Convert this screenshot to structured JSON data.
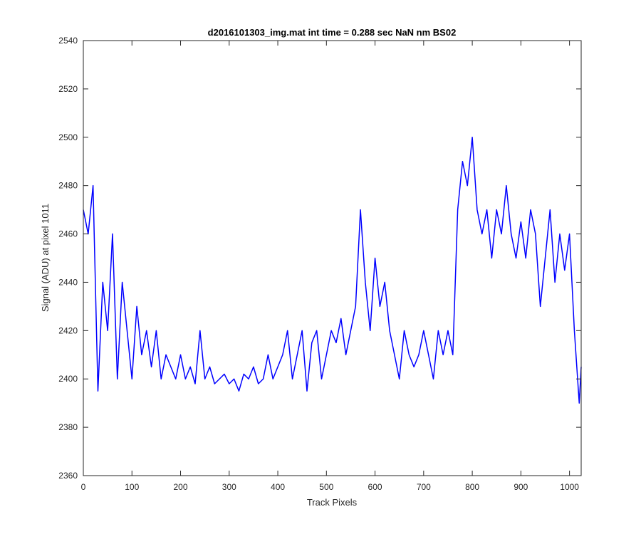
{
  "chart_data": {
    "type": "line",
    "title": "d2016101303_img.mat int time = 0.288 sec  NaN nm BS02",
    "xlabel": "Track Pixels",
    "ylabel": "Signal (ADU) at pixel 1011",
    "xlim": [
      0,
      1024
    ],
    "ylim": [
      2360,
      2540
    ],
    "xticks": [
      0,
      100,
      200,
      300,
      400,
      500,
      600,
      700,
      800,
      900,
      1000
    ],
    "yticks": [
      2360,
      2380,
      2400,
      2420,
      2440,
      2460,
      2480,
      2500,
      2520,
      2540
    ],
    "grid": false,
    "line_color": "#0000ff",
    "series": [
      {
        "x": [
          0,
          10,
          20,
          30,
          40,
          50,
          60,
          70,
          80,
          90,
          100,
          110,
          120,
          130,
          140,
          150,
          160,
          170,
          180,
          190,
          200,
          210,
          220,
          230,
          240,
          250,
          260,
          270,
          280,
          290,
          300,
          310,
          320,
          330,
          340,
          350,
          360,
          370,
          380,
          390,
          400,
          410,
          420,
          430,
          440,
          450,
          460,
          470,
          480,
          490,
          500,
          510,
          520,
          530,
          540,
          550,
          560,
          570,
          580,
          590,
          600,
          610,
          620,
          630,
          640,
          650,
          660,
          670,
          680,
          690,
          700,
          710,
          720,
          730,
          740,
          750,
          760,
          770,
          780,
          790,
          800,
          810,
          820,
          830,
          840,
          850,
          860,
          870,
          880,
          890,
          900,
          910,
          920,
          930,
          940,
          950,
          960,
          970,
          980,
          990,
          1000,
          1010,
          1020,
          1024
        ],
        "y": [
          2470,
          2460,
          2480,
          2395,
          2440,
          2420,
          2460,
          2400,
          2440,
          2420,
          2400,
          2430,
          2410,
          2420,
          2405,
          2420,
          2400,
          2410,
          2405,
          2400,
          2410,
          2400,
          2405,
          2398,
          2420,
          2400,
          2405,
          2398,
          2400,
          2402,
          2398,
          2400,
          2395,
          2402,
          2400,
          2405,
          2398,
          2400,
          2410,
          2400,
          2405,
          2410,
          2420,
          2400,
          2410,
          2420,
          2395,
          2415,
          2420,
          2400,
          2410,
          2420,
          2415,
          2425,
          2410,
          2420,
          2430,
          2470,
          2440,
          2420,
          2450,
          2430,
          2440,
          2420,
          2410,
          2400,
          2420,
          2410,
          2405,
          2410,
          2420,
          2410,
          2400,
          2420,
          2410,
          2420,
          2410,
          2470,
          2490,
          2480,
          2500,
          2470,
          2460,
          2470,
          2450,
          2470,
          2460,
          2480,
          2460,
          2450,
          2465,
          2450,
          2470,
          2460,
          2430,
          2450,
          2470,
          2440,
          2460,
          2445,
          2460,
          2420,
          2390,
          2405
        ]
      }
    ]
  }
}
